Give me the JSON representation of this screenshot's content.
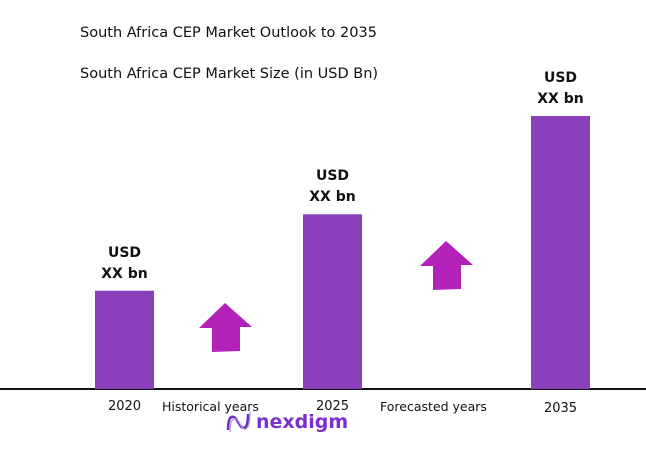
{
  "chart_data": {
    "type": "bar",
    "title": "South Africa CEP Market Outlook to 2035",
    "subtitle": "South Africa CEP Market Size (in USD Bn)",
    "categories": [
      "2020",
      "2025",
      "2035"
    ],
    "relative_values": [
      0.36,
      0.64,
      1.0
    ],
    "data_labels": [
      {
        "line1": "USD",
        "line2": "XX bn"
      },
      {
        "line1": "USD",
        "line2": "XX bn"
      },
      {
        "line1": "USD",
        "line2": "XX bn"
      }
    ],
    "annotations": [
      "Historical years",
      "Forecasted years"
    ],
    "grid": false,
    "bar_color": "#8a3fbb",
    "arrow_color": "#b321b8"
  },
  "brand": {
    "name": "nexdigm"
  }
}
